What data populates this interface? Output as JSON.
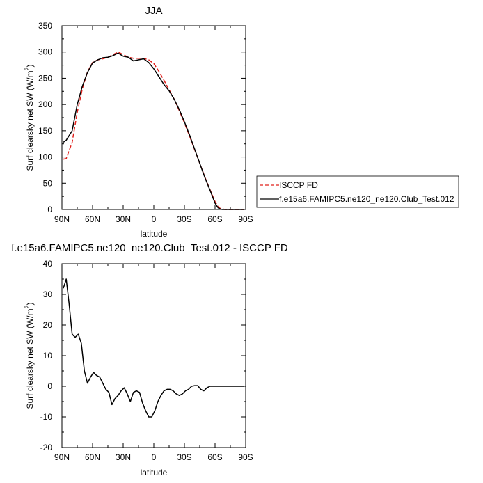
{
  "chart_data": [
    {
      "type": "line",
      "title": "JJA",
      "xlabel": "latitude",
      "ylabel": "Surf clearsky net SW (W/m",
      "ylabel_sup": "2",
      "ylabel_close": ")",
      "xlim": [
        90,
        -90
      ],
      "ylim": [
        0,
        350
      ],
      "x_ticks": [
        90,
        60,
        30,
        0,
        -30,
        -60,
        -90
      ],
      "x_tick_labels": [
        "90N",
        "60N",
        "30N",
        "0",
        "30S",
        "60S",
        "90S"
      ],
      "y_ticks": [
        0,
        50,
        100,
        150,
        200,
        250,
        300,
        350
      ],
      "y_tick_labels": [
        "0",
        "50",
        "100",
        "150",
        "200",
        "250",
        "300",
        "350"
      ],
      "grid": false,
      "legend_position": "right",
      "series": [
        {
          "name": "ISCCP FD",
          "color": "#e0201b",
          "dash": "dashed",
          "x": [
            88.6,
            85.8,
            80,
            75,
            70,
            65,
            60,
            55,
            50,
            45,
            40,
            35,
            30,
            25,
            20,
            15,
            10,
            5,
            0,
            -5,
            -10,
            -15,
            -20,
            -25,
            -30,
            -35,
            -40,
            -45,
            -50,
            -55,
            -60,
            -63,
            -65,
            -67,
            -70,
            -75,
            -80,
            -85,
            -88.6
          ],
          "y": [
            96,
            97,
            128,
            185,
            230,
            262,
            280,
            285,
            287,
            290,
            295,
            300,
            295,
            290,
            288,
            288,
            288,
            285,
            278,
            263,
            246,
            228,
            210,
            188,
            165,
            140,
            114,
            88,
            62,
            38,
            15,
            5,
            2,
            1,
            0,
            0,
            0,
            0,
            0
          ]
        },
        {
          "name": "f.e15a6.FAMIPC5.ne120_ne120.Club_Test.012",
          "color": "#000000",
          "dash": "solid",
          "x": [
            88.6,
            85.8,
            80,
            75,
            70,
            65,
            60,
            55,
            50,
            45,
            40,
            35,
            30,
            25,
            20,
            15,
            10,
            5,
            0,
            -5,
            -10,
            -15,
            -20,
            -25,
            -30,
            -35,
            -40,
            -45,
            -50,
            -55,
            -60,
            -63,
            -65,
            -67,
            -70,
            -75,
            -80,
            -85,
            -88.6
          ],
          "y": [
            128,
            132,
            150,
            200,
            235,
            261,
            279,
            285,
            289,
            290,
            293,
            298,
            292,
            290,
            283,
            285,
            287,
            280,
            268,
            253,
            238,
            226,
            210,
            190,
            167,
            142,
            115,
            88,
            61,
            37,
            12,
            3,
            1,
            0,
            0,
            0,
            0,
            0,
            0
          ]
        }
      ]
    },
    {
      "type": "line",
      "title": "f.e15a6.FAMIPC5.ne120_ne120.Club_Test.012 - ISCCP FD",
      "xlabel": "latitude",
      "ylabel": "Surf clearsky net SW (W/m",
      "ylabel_sup": "2",
      "ylabel_close": ")",
      "xlim": [
        90,
        -90
      ],
      "ylim": [
        -20,
        40
      ],
      "x_ticks": [
        90,
        60,
        30,
        0,
        -30,
        -60,
        -90
      ],
      "x_tick_labels": [
        "90N",
        "60N",
        "30N",
        "0",
        "30S",
        "60S",
        "90S"
      ],
      "y_ticks": [
        -20,
        -10,
        0,
        10,
        20,
        30,
        40
      ],
      "y_tick_labels": [
        "-20",
        "-10",
        "0",
        "10",
        "20",
        "30",
        "40"
      ],
      "grid": false,
      "series": [
        {
          "name": "",
          "color": "#000000",
          "dash": "solid",
          "x": [
            88.6,
            85.8,
            83,
            80,
            77,
            74,
            71,
            68,
            65,
            62,
            59,
            56,
            53,
            50,
            47,
            44,
            41,
            38,
            35,
            32,
            29,
            26,
            23,
            20,
            17,
            14,
            11,
            8,
            5,
            2,
            -1,
            -4,
            -7,
            -10,
            -13,
            -16,
            -19,
            -22,
            -25,
            -28,
            -31,
            -34,
            -37,
            -40,
            -43,
            -46,
            -49,
            -52,
            -55,
            -58,
            -61,
            -64,
            -67,
            -70,
            -73,
            -76,
            -79,
            -82,
            -85,
            -88.6
          ],
          "y": [
            32,
            35,
            27,
            17,
            16,
            17,
            14,
            5,
            1,
            3,
            4.5,
            3.5,
            3,
            1,
            -1,
            -2,
            -6,
            -4,
            -3,
            -1.5,
            -0.5,
            -2.5,
            -5,
            -2,
            -1.5,
            -2,
            -5.5,
            -8,
            -10,
            -10,
            -8,
            -5,
            -3,
            -1.5,
            -1,
            -1,
            -1.5,
            -2.5,
            -3,
            -2.5,
            -1.5,
            -1,
            0,
            0.2,
            0.2,
            -1,
            -1.5,
            -0.5,
            0,
            0,
            0,
            0,
            0,
            0,
            0,
            0,
            0,
            0,
            0,
            0
          ]
        }
      ]
    }
  ]
}
